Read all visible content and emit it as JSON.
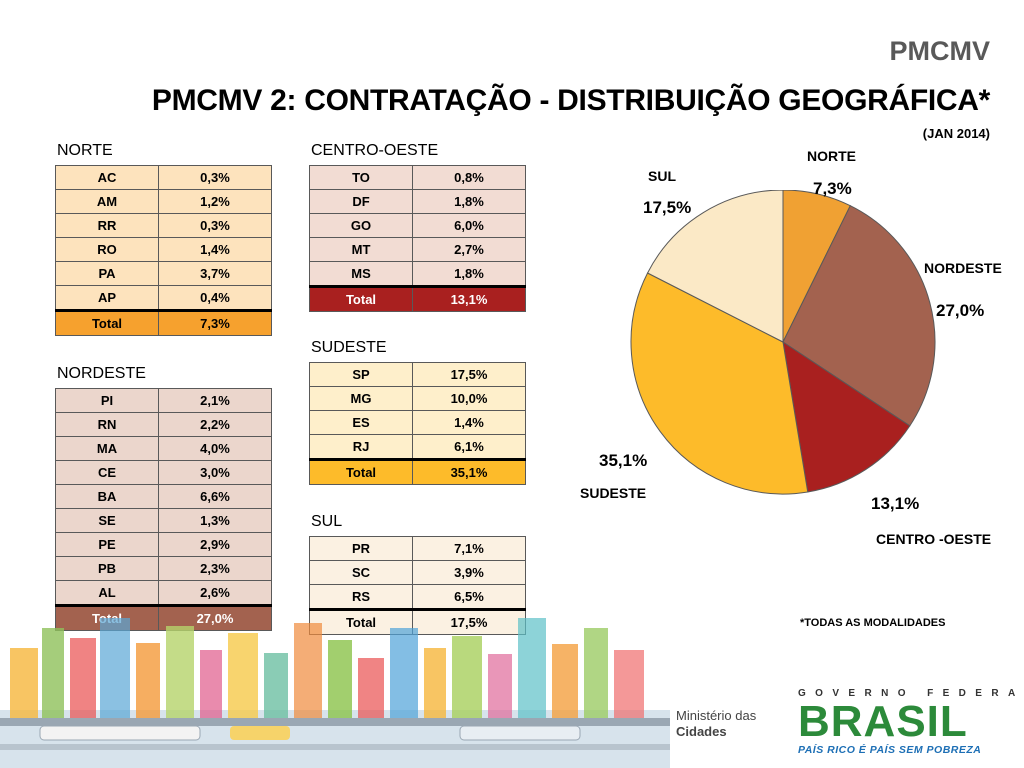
{
  "header": {
    "brand": "PMCMV",
    "title": "PMCMV 2: CONTRATAÇÃO - DISTRIBUIÇÃO GEOGRÁFICA*",
    "date": "(JAN 2014)"
  },
  "colors": {
    "norte_light": "#FDE3BD",
    "norte_total": "#F6A12E",
    "nordeste_light": "#EBD6CC",
    "nordeste_total": "#A3624F",
    "centro_light": "#F2DCD3",
    "centro_total": "#A9201F",
    "sudeste_light": "#FEEFCB",
    "sudeste_total": "#FDBB2A",
    "sul_light": "#FBF1E2",
    "sul_total": "#FBF1E2"
  },
  "tables": {
    "norte": {
      "label": "NORTE",
      "rows": [
        {
          "uf": "AC",
          "pct": "0,3%"
        },
        {
          "uf": "AM",
          "pct": "1,2%"
        },
        {
          "uf": "RR",
          "pct": "0,3%"
        },
        {
          "uf": "RO",
          "pct": "1,4%"
        },
        {
          "uf": "PA",
          "pct": "3,7%"
        },
        {
          "uf": "AP",
          "pct": "0,4%"
        }
      ],
      "total_label": "Total",
      "total": "7,3%"
    },
    "nordeste": {
      "label": "NORDESTE",
      "rows": [
        {
          "uf": "PI",
          "pct": "2,1%"
        },
        {
          "uf": "RN",
          "pct": "2,2%"
        },
        {
          "uf": "MA",
          "pct": "4,0%"
        },
        {
          "uf": "CE",
          "pct": "3,0%"
        },
        {
          "uf": "BA",
          "pct": "6,6%"
        },
        {
          "uf": "SE",
          "pct": "1,3%"
        },
        {
          "uf": "PE",
          "pct": "2,9%"
        },
        {
          "uf": "PB",
          "pct": "2,3%"
        },
        {
          "uf": "AL",
          "pct": "2,6%"
        }
      ],
      "total_label": "Total",
      "total": "27,0%"
    },
    "centro_oeste": {
      "label": "CENTRO-OESTE",
      "rows": [
        {
          "uf": "TO",
          "pct": "0,8%"
        },
        {
          "uf": "DF",
          "pct": "1,8%"
        },
        {
          "uf": "GO",
          "pct": "6,0%"
        },
        {
          "uf": "MT",
          "pct": "2,7%"
        },
        {
          "uf": "MS",
          "pct": "1,8%"
        }
      ],
      "total_label": "Total",
      "total": "13,1%"
    },
    "sudeste": {
      "label": "SUDESTE",
      "rows": [
        {
          "uf": "SP",
          "pct": "17,5%"
        },
        {
          "uf": "MG",
          "pct": "10,0%"
        },
        {
          "uf": "ES",
          "pct": "1,4%"
        },
        {
          "uf": "RJ",
          "pct": "6,1%"
        }
      ],
      "total_label": "Total",
      "total": "35,1%"
    },
    "sul": {
      "label": "SUL",
      "rows": [
        {
          "uf": "PR",
          "pct": "7,1%"
        },
        {
          "uf": "SC",
          "pct": "3,9%"
        },
        {
          "uf": "RS",
          "pct": "6,5%"
        }
      ],
      "total_label": "Total",
      "total": "17,5%"
    }
  },
  "chart_data": {
    "type": "pie",
    "title": "",
    "slices": [
      {
        "label": "NORTE",
        "value": 7.3,
        "display": "7,3%",
        "color": "#F0A133"
      },
      {
        "label": "NORDESTE",
        "value": 27.0,
        "display": "27,0%",
        "color": "#A3624F"
      },
      {
        "label": "CENTRO -OESTE",
        "value": 13.1,
        "display": "13,1%",
        "color": "#A9201F"
      },
      {
        "label": "SUDESTE",
        "value": 35.1,
        "display": "35,1%",
        "color": "#FDBB2A"
      },
      {
        "label": "SUL",
        "value": 17.5,
        "display": "17,5%",
        "color": "#FBE9C6"
      }
    ],
    "start_angle_deg": 0,
    "direction": "clockwise"
  },
  "note": "*TODAS AS MODALIDADES",
  "footer": {
    "ministerio_line1": "Ministério das",
    "ministerio_line2": "Cidades",
    "gov": "GOVERNO FEDERAL",
    "brasil": "BRASIL",
    "slogan": "PAÍS RICO É PAÍS SEM POBREZA"
  }
}
